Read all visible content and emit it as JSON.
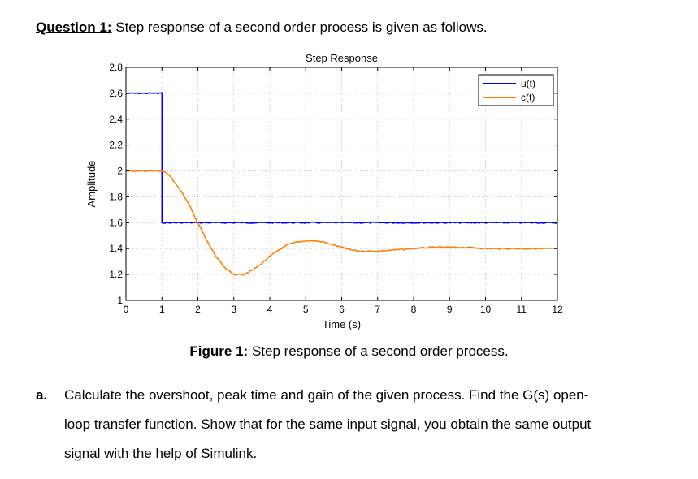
{
  "question": {
    "label": "Question 1:",
    "text": " Step response of a second order process is given as follows."
  },
  "figure": {
    "caption_label": "Figure 1:",
    "caption_text": " Step response of a second order process."
  },
  "item_a": {
    "marker": "a.",
    "line1": "Calculate the overshoot, peak time and gain of the given process. Find the G(s) open-",
    "line2": "loop transfer function. Show that for the same input signal, you obtain the same output",
    "line3": "signal with the help of Simulink."
  },
  "chart_data": {
    "type": "line",
    "title": "Step Response",
    "xlabel": "Time (s)",
    "ylabel": "Amplitude",
    "xlim": [
      0,
      12
    ],
    "ylim": [
      1,
      2.8
    ],
    "xticks": [
      0,
      1,
      2,
      3,
      4,
      5,
      6,
      7,
      8,
      9,
      10,
      11,
      12
    ],
    "yticks": [
      1,
      1.2,
      1.4,
      1.6,
      1.8,
      2,
      2.2,
      2.4,
      2.6,
      2.8
    ],
    "ytick_labels": [
      "1",
      "1.2",
      "1.4",
      "1.6",
      "1.8",
      "2",
      "2.2",
      "2.4",
      "2.6",
      "2.8"
    ],
    "grid": true,
    "legend_position": "top-right",
    "series": [
      {
        "name": "u(t)",
        "color": "#0000ff",
        "x": [
          0,
          1,
          1,
          12
        ],
        "y": [
          2.6,
          2.6,
          1.6,
          1.6
        ]
      },
      {
        "name": "c(t)",
        "color": "#ff7f00",
        "x": [
          0,
          1,
          1.1,
          1.25,
          1.5,
          1.75,
          2.0,
          2.25,
          2.5,
          2.75,
          3.0,
          3.25,
          3.5,
          3.75,
          4.0,
          4.25,
          4.5,
          4.75,
          5.0,
          5.25,
          5.5,
          5.75,
          6.0,
          6.25,
          6.5,
          6.75,
          7.0,
          7.5,
          8.0,
          8.5,
          9.0,
          9.5,
          10.0,
          10.5,
          11.0,
          11.5,
          12.0
        ],
        "y": [
          2.0,
          2.0,
          1.99,
          1.95,
          1.86,
          1.74,
          1.6,
          1.46,
          1.34,
          1.25,
          1.2,
          1.2,
          1.23,
          1.28,
          1.34,
          1.39,
          1.43,
          1.45,
          1.46,
          1.46,
          1.45,
          1.43,
          1.41,
          1.39,
          1.38,
          1.38,
          1.38,
          1.39,
          1.4,
          1.41,
          1.41,
          1.41,
          1.4,
          1.4,
          1.4,
          1.4,
          1.4
        ]
      }
    ]
  }
}
